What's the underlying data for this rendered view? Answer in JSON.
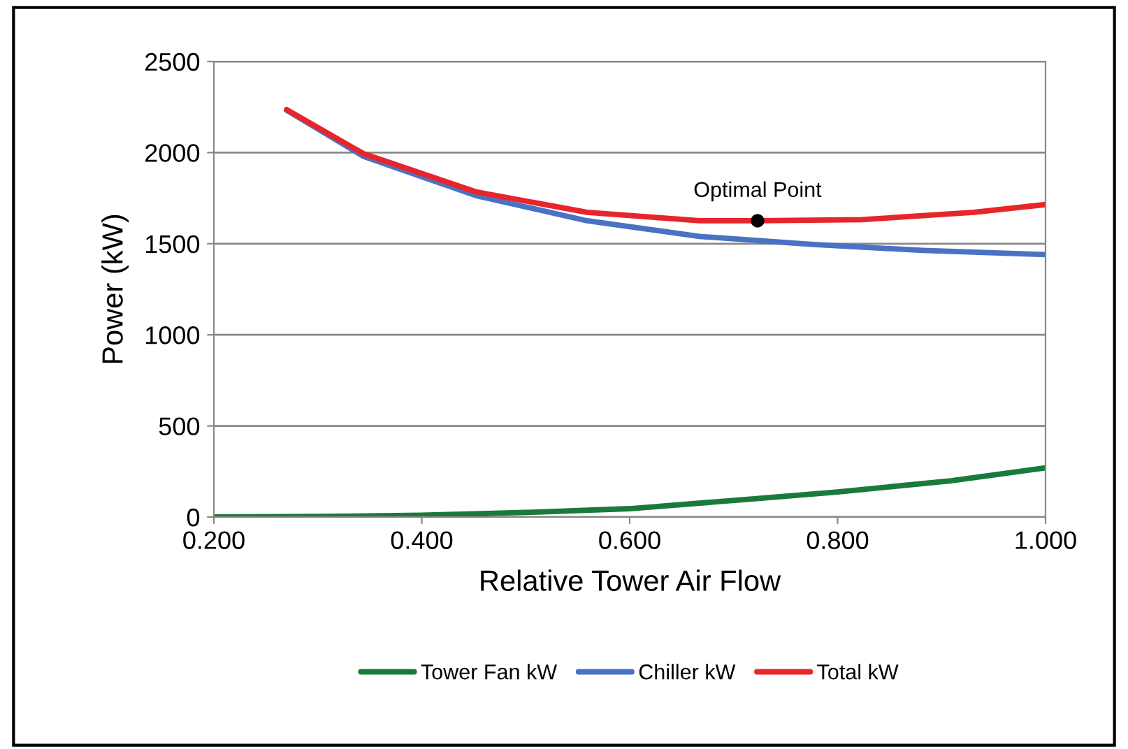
{
  "chart_data": {
    "type": "line",
    "xlabel": "Relative Tower Air Flow",
    "ylabel": "Power (kW)",
    "xlim": [
      0.2,
      1.0
    ],
    "xticks": [
      {
        "value": 0.2,
        "label": "0.200"
      },
      {
        "value": 0.4,
        "label": "0.400"
      },
      {
        "value": 0.6,
        "label": "0.600"
      },
      {
        "value": 0.8,
        "label": "0.800"
      },
      {
        "value": 1.0,
        "label": "1.000"
      }
    ],
    "ylim": [
      0,
      2500
    ],
    "yticks": [
      0,
      500,
      1000,
      1500,
      2000,
      2500
    ],
    "grid": "y",
    "legend": "bottom",
    "marker": "none",
    "line_style": "solid",
    "series": [
      {
        "name": "Tower Fan kW",
        "color": "#1a7a3c",
        "x": [
          0.2,
          0.3,
          0.4,
          0.5,
          0.6,
          0.72,
          0.8,
          0.909,
          1.0
        ],
        "values": [
          0,
          3,
          10,
          25,
          46,
          100,
          138,
          199,
          270
        ]
      },
      {
        "name": "Chiller kW",
        "color": "#4a72c4",
        "x": [
          0.27,
          0.344,
          0.452,
          0.559,
          0.667,
          0.774,
          0.882,
          1.0
        ],
        "values": [
          2233,
          1979,
          1764,
          1626,
          1540,
          1497,
          1463,
          1440
        ]
      },
      {
        "name": "Total kW",
        "color": "#e8252a",
        "x": [
          0.27,
          0.344,
          0.452,
          0.559,
          0.667,
          0.723,
          0.823,
          0.931,
          1.0
        ],
        "values": [
          2236,
          1994,
          1785,
          1672,
          1626,
          1626,
          1632,
          1672,
          1715
        ]
      }
    ],
    "annotations": [
      {
        "text": "Optimal Point",
        "x": 0.723,
        "y": 1626
      }
    ]
  }
}
